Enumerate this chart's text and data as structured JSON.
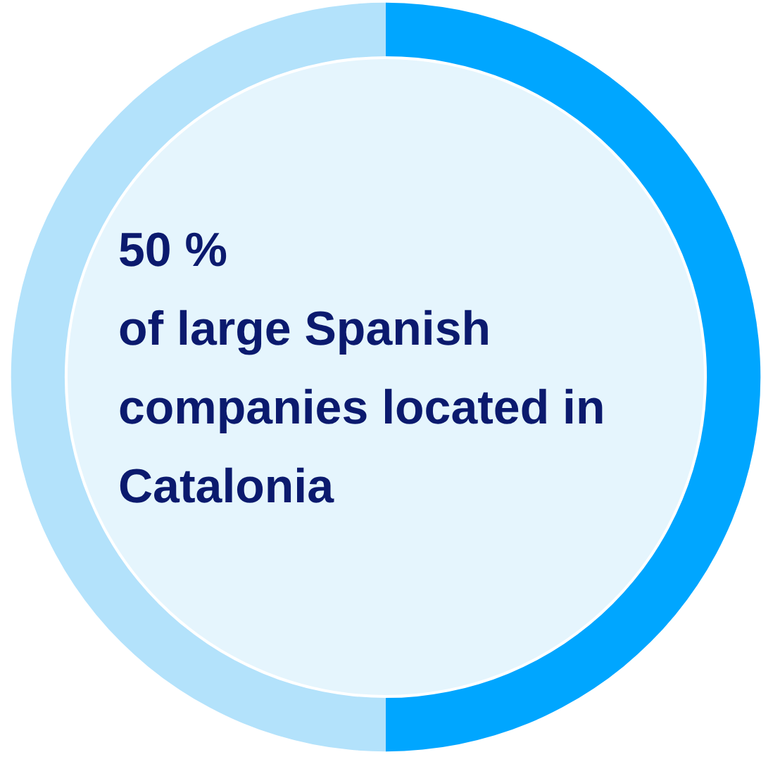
{
  "chart_data": {
    "type": "donut",
    "categories": [
      null,
      null
    ],
    "values": [
      50,
      50
    ],
    "colors": [
      "#00a6ff",
      "#b3e2fb"
    ],
    "annotations": [
      "50 %",
      "of large Spanish companies located in Catalonia"
    ]
  }
}
